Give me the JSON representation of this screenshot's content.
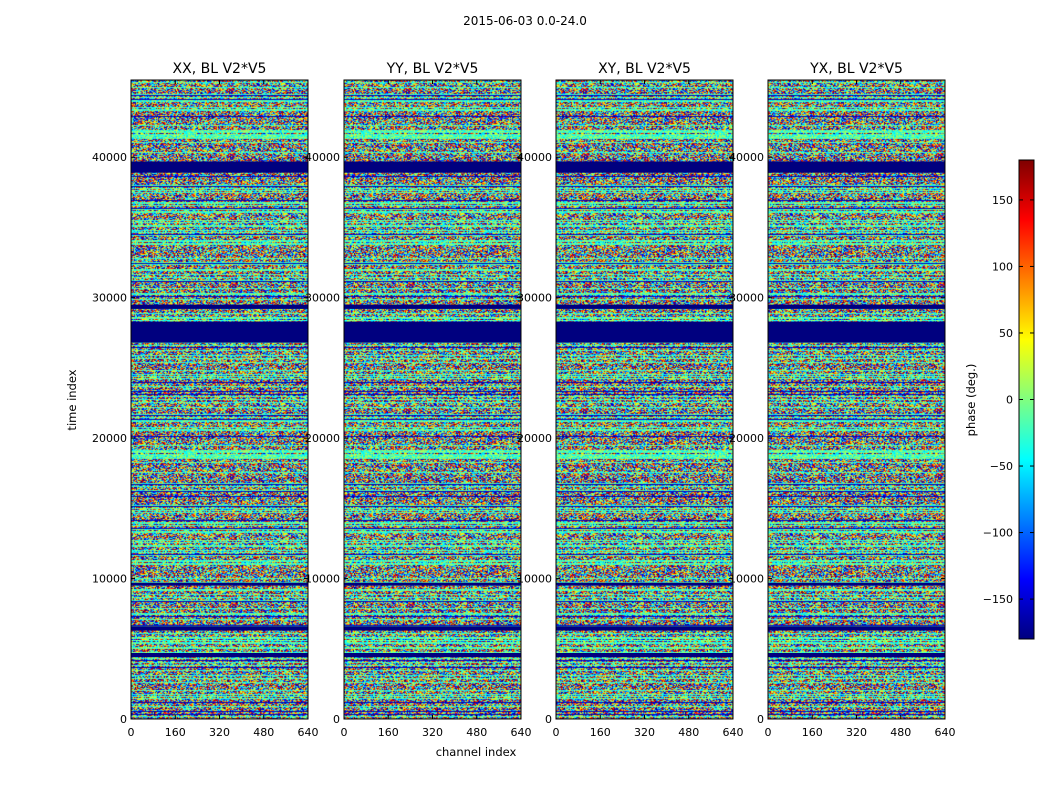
{
  "figure": {
    "suptitle": "2015-06-03 0.0-24.0",
    "xlabel": "channel index",
    "ylabel": "time index",
    "colorbar_label": "phase (deg.)"
  },
  "chart_data": {
    "type": "heatmap",
    "title": "2015-06-03 0.0-24.0",
    "xlabel": "channel index",
    "ylabel": "time index",
    "xlim": [
      0,
      640
    ],
    "ylim": [
      0,
      45500
    ],
    "x_ticks": [
      0,
      160,
      320,
      480,
      640
    ],
    "y_ticks": [
      0,
      10000,
      20000,
      30000,
      40000
    ],
    "panels": [
      {
        "title": "XX, BL V2*V5"
      },
      {
        "title": "YY, BL V2*V5"
      },
      {
        "title": "XY, BL V2*V5"
      },
      {
        "title": "YX, BL V2*V5"
      }
    ],
    "colorbar": {
      "label": "phase (deg.)",
      "range": [
        -180,
        180
      ],
      "ticks": [
        -150,
        -100,
        -50,
        0,
        50,
        100,
        150
      ],
      "colormap": "jet",
      "colors": [
        "#00007f",
        "#0000ff",
        "#0080ff",
        "#00ffff",
        "#80ff80",
        "#ffff00",
        "#ff8000",
        "#ff0000",
        "#7f0000"
      ]
    },
    "flagged_time_ranges": [
      [
        26800,
        28300
      ],
      [
        38900,
        39700
      ],
      [
        4400,
        4700
      ],
      [
        6300,
        6600
      ],
      [
        9500,
        9700
      ],
      [
        29200,
        29500
      ]
    ]
  }
}
